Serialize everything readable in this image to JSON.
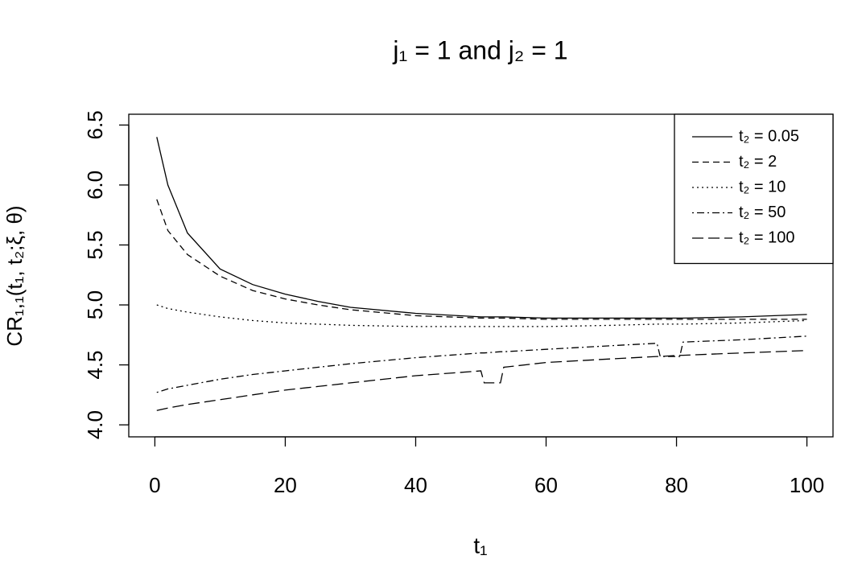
{
  "chart_data": {
    "type": "line",
    "title": "j₁ = 1 and j₂ = 1",
    "x_label": "t₁",
    "y_label": "CR₁,₁(t₁, t₂;ξ, θ)",
    "x": [
      0.3,
      2,
      5,
      10,
      15,
      20,
      25,
      30,
      40,
      50,
      50.5,
      53,
      53.5,
      60,
      70,
      77,
      77.5,
      80.5,
      81,
      90,
      100
    ],
    "series": [
      {
        "name": "t₂ = 0.05",
        "color": "#000000",
        "linetype": "solid",
        "values": [
          6.4,
          6.0,
          5.6,
          5.3,
          5.17,
          5.09,
          5.03,
          4.98,
          4.93,
          4.9,
          4.9,
          4.9,
          4.9,
          4.89,
          4.89,
          4.89,
          4.89,
          4.89,
          4.89,
          4.9,
          4.92
        ]
      },
      {
        "name": "t₂ = 2",
        "color": "#000000",
        "linetype": "dashed",
        "values": [
          5.88,
          5.62,
          5.42,
          5.24,
          5.12,
          5.05,
          5.0,
          4.96,
          4.91,
          4.89,
          4.89,
          4.89,
          4.89,
          4.88,
          4.88,
          4.88,
          4.88,
          4.88,
          4.88,
          4.88,
          4.88
        ]
      },
      {
        "name": "t₂ = 10",
        "color": "#000000",
        "linetype": "dotted",
        "values": [
          5.0,
          4.97,
          4.94,
          4.9,
          4.87,
          4.85,
          4.84,
          4.83,
          4.82,
          4.82,
          4.82,
          4.82,
          4.82,
          4.82,
          4.83,
          4.84,
          4.84,
          4.84,
          4.84,
          4.85,
          4.87
        ]
      },
      {
        "name": "t₂ = 50",
        "color": "#000000",
        "linetype": "dotdash",
        "values": [
          4.27,
          4.3,
          4.33,
          4.38,
          4.42,
          4.45,
          4.48,
          4.51,
          4.56,
          4.6,
          4.6,
          4.61,
          4.61,
          4.63,
          4.66,
          4.68,
          4.57,
          4.57,
          4.69,
          4.71,
          4.74
        ]
      },
      {
        "name": "t₂ = 100",
        "color": "#000000",
        "linetype": "longdash",
        "values": [
          4.12,
          4.14,
          4.17,
          4.21,
          4.25,
          4.29,
          4.32,
          4.35,
          4.41,
          4.45,
          4.35,
          4.35,
          4.48,
          4.52,
          4.55,
          4.57,
          4.57,
          4.58,
          4.58,
          4.6,
          4.62
        ]
      }
    ],
    "xlim": [
      -4,
      104
    ],
    "ylim": [
      3.9,
      6.59
    ],
    "xticks": [
      0,
      20,
      40,
      60,
      80,
      100
    ],
    "yticks": [
      {
        "value": 4,
        "label": "4.0"
      },
      {
        "value": 4.5,
        "label": "4.5"
      },
      {
        "value": 5,
        "label": "5.0"
      },
      {
        "value": 5.5,
        "label": "5.5"
      },
      {
        "value": 6,
        "label": "6.0"
      },
      {
        "value": 6.5,
        "label": "6.5"
      }
    ],
    "legend": "topright"
  }
}
